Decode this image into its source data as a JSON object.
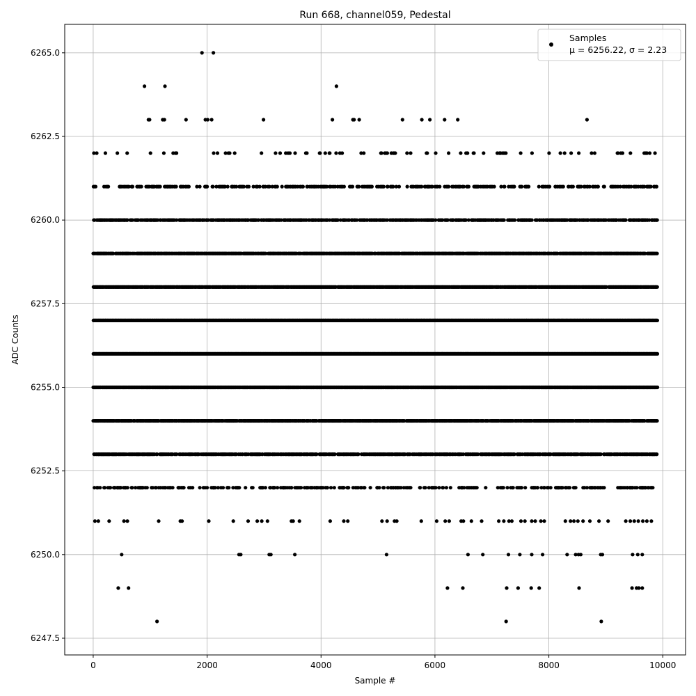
{
  "chart_data": {
    "type": "scatter",
    "title": "Run 668, channel059, Pedestal",
    "xlabel": "Sample #",
    "ylabel": "ADC Counts",
    "xlim": [
      -500,
      10400
    ],
    "ylim": [
      6247.0,
      6265.85
    ],
    "x_ticks": [
      "0",
      "2000",
      "4000",
      "6000",
      "8000",
      "10000"
    ],
    "y_ticks": [
      "6247.5",
      "6250.0",
      "6252.5",
      "6255.0",
      "6257.5",
      "6260.0",
      "6262.5",
      "6265.0"
    ],
    "x_tick_values": [
      0,
      2000,
      4000,
      6000,
      8000,
      10000
    ],
    "y_tick_values": [
      6247.5,
      6250.0,
      6252.5,
      6255.0,
      6257.5,
      6260.0,
      6262.5,
      6265.0
    ],
    "grid": true,
    "legend_position": "top-right",
    "marker_color": "#000000",
    "n_samples": 10000,
    "x_range": [
      0,
      9900
    ],
    "series": [
      {
        "name": "Samples",
        "stats_label": "μ = 6256.22, σ = 2.23",
        "rare_points": [
          [
            1120,
            6248
          ],
          [
            7250,
            6248
          ],
          [
            8920,
            6248
          ],
          [
            440,
            6249
          ],
          [
            620,
            6249
          ],
          [
            6220,
            6249
          ],
          [
            6490,
            6249
          ],
          [
            7260,
            6249
          ],
          [
            7460,
            6249
          ],
          [
            7690,
            6249
          ],
          [
            7830,
            6249
          ],
          [
            8530,
            6249
          ],
          [
            9460,
            6249
          ],
          [
            9540,
            6249
          ],
          [
            9580,
            6249
          ],
          [
            9640,
            6249
          ],
          [
            500,
            6250
          ],
          [
            2560,
            6250
          ],
          [
            2590,
            6250
          ],
          [
            3090,
            6250
          ],
          [
            3120,
            6250
          ],
          [
            3540,
            6250
          ],
          [
            5150,
            6250
          ],
          [
            6580,
            6250
          ],
          [
            6840,
            6250
          ],
          [
            7290,
            6250
          ],
          [
            7490,
            6250
          ],
          [
            7700,
            6250
          ],
          [
            7890,
            6250
          ],
          [
            8320,
            6250
          ],
          [
            8470,
            6250
          ],
          [
            8520,
            6250
          ],
          [
            8560,
            6250
          ],
          [
            8910,
            6250
          ],
          [
            8940,
            6250
          ],
          [
            9470,
            6250
          ],
          [
            9560,
            6250
          ],
          [
            9640,
            6250
          ],
          [
            900,
            6264
          ],
          [
            1260,
            6264
          ],
          [
            4270,
            6264
          ],
          [
            1910,
            6265
          ],
          [
            2110,
            6265
          ],
          [
            970,
            6263
          ],
          [
            990,
            6263
          ],
          [
            1220,
            6263
          ],
          [
            1250,
            6263
          ],
          [
            1630,
            6263
          ],
          [
            1970,
            6263
          ],
          [
            2010,
            6263
          ],
          [
            2080,
            6263
          ],
          [
            2990,
            6263
          ],
          [
            4200,
            6263
          ],
          [
            4560,
            6263
          ],
          [
            4580,
            6263
          ],
          [
            4670,
            6263
          ],
          [
            5430,
            6263
          ],
          [
            5770,
            6263
          ],
          [
            5910,
            6263
          ],
          [
            6170,
            6263
          ],
          [
            6400,
            6263
          ],
          [
            8670,
            6263
          ],
          [
            280,
            6251
          ],
          [
            540,
            6251
          ],
          [
            600,
            6251
          ],
          [
            1530,
            6251
          ],
          [
            1560,
            6251
          ],
          [
            2030,
            6251
          ],
          [
            2460,
            6251
          ],
          [
            2720,
            6251
          ],
          [
            2880,
            6251
          ],
          [
            2960,
            6251
          ],
          [
            3060,
            6251
          ],
          [
            3480,
            6251
          ],
          [
            3510,
            6251
          ],
          [
            3620,
            6251
          ],
          [
            4160,
            6251
          ],
          [
            4400,
            6251
          ],
          [
            4470,
            6251
          ],
          [
            5070,
            6251
          ],
          [
            5160,
            6251
          ],
          [
            5290,
            6251
          ],
          [
            5330,
            6251
          ],
          [
            5760,
            6251
          ],
          [
            6030,
            6251
          ],
          [
            6180,
            6251
          ],
          [
            6250,
            6251
          ],
          [
            6460,
            6251
          ],
          [
            6500,
            6251
          ],
          [
            6640,
            6251
          ],
          [
            6820,
            6251
          ],
          [
            7120,
            6251
          ],
          [
            7210,
            6251
          ],
          [
            7300,
            6251
          ],
          [
            7350,
            6251
          ],
          [
            7510,
            6251
          ],
          [
            7580,
            6251
          ],
          [
            7700,
            6251
          ],
          [
            7760,
            6251
          ],
          [
            7860,
            6251
          ],
          [
            7920,
            6251
          ],
          [
            8290,
            6251
          ],
          [
            8380,
            6251
          ],
          [
            8440,
            6251
          ],
          [
            8510,
            6251
          ],
          [
            8600,
            6251
          ],
          [
            8720,
            6251
          ],
          [
            8880,
            6251
          ],
          [
            9040,
            6251
          ],
          [
            9350,
            6251
          ],
          [
            9430,
            6251
          ],
          [
            9500,
            6251
          ],
          [
            9570,
            6251
          ],
          [
            9650,
            6251
          ],
          [
            9720,
            6251
          ],
          [
            9800,
            6251
          ],
          [
            30,
            6251
          ],
          [
            90,
            6251
          ],
          [
            1150,
            6251
          ]
        ],
        "row_density": {
          "6252": 0.28,
          "6253": 0.62,
          "6254": 0.85,
          "6255": 0.95,
          "6256": 1.0,
          "6257": 1.0,
          "6258": 0.95,
          "6259": 0.85,
          "6260": 0.6,
          "6261": 0.3,
          "6262": 0.09
        }
      }
    ]
  }
}
